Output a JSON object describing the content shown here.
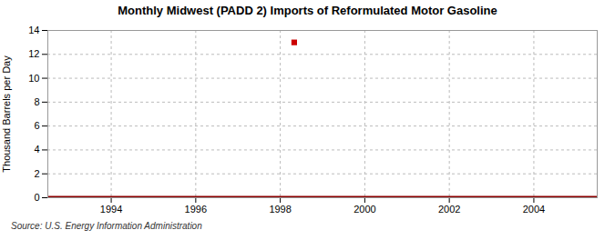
{
  "chart_data": {
    "type": "line",
    "title": "Monthly Midwest (PADD 2) Imports of Reformulated Motor Gasoline",
    "ylabel": "Thousand Barrels per Day",
    "source": "Source: U.S. Energy Information Administration",
    "series": [
      {
        "type": "line",
        "color": "#8b0000",
        "x": [
          1992.5,
          2005.5
        ],
        "values": [
          0,
          0
        ]
      },
      {
        "type": "scatter",
        "color": "#cc0000",
        "marker": "square",
        "x": [
          1998.33
        ],
        "values": [
          13.0
        ]
      }
    ],
    "xlim": [
      1992.5,
      2005.5
    ],
    "xticks": [
      1994,
      1996,
      1998,
      2000,
      2002,
      2004
    ],
    "ylim": [
      0,
      14
    ],
    "yticks": [
      0,
      2,
      4,
      6,
      8,
      10,
      12,
      14
    ],
    "grid": true
  }
}
